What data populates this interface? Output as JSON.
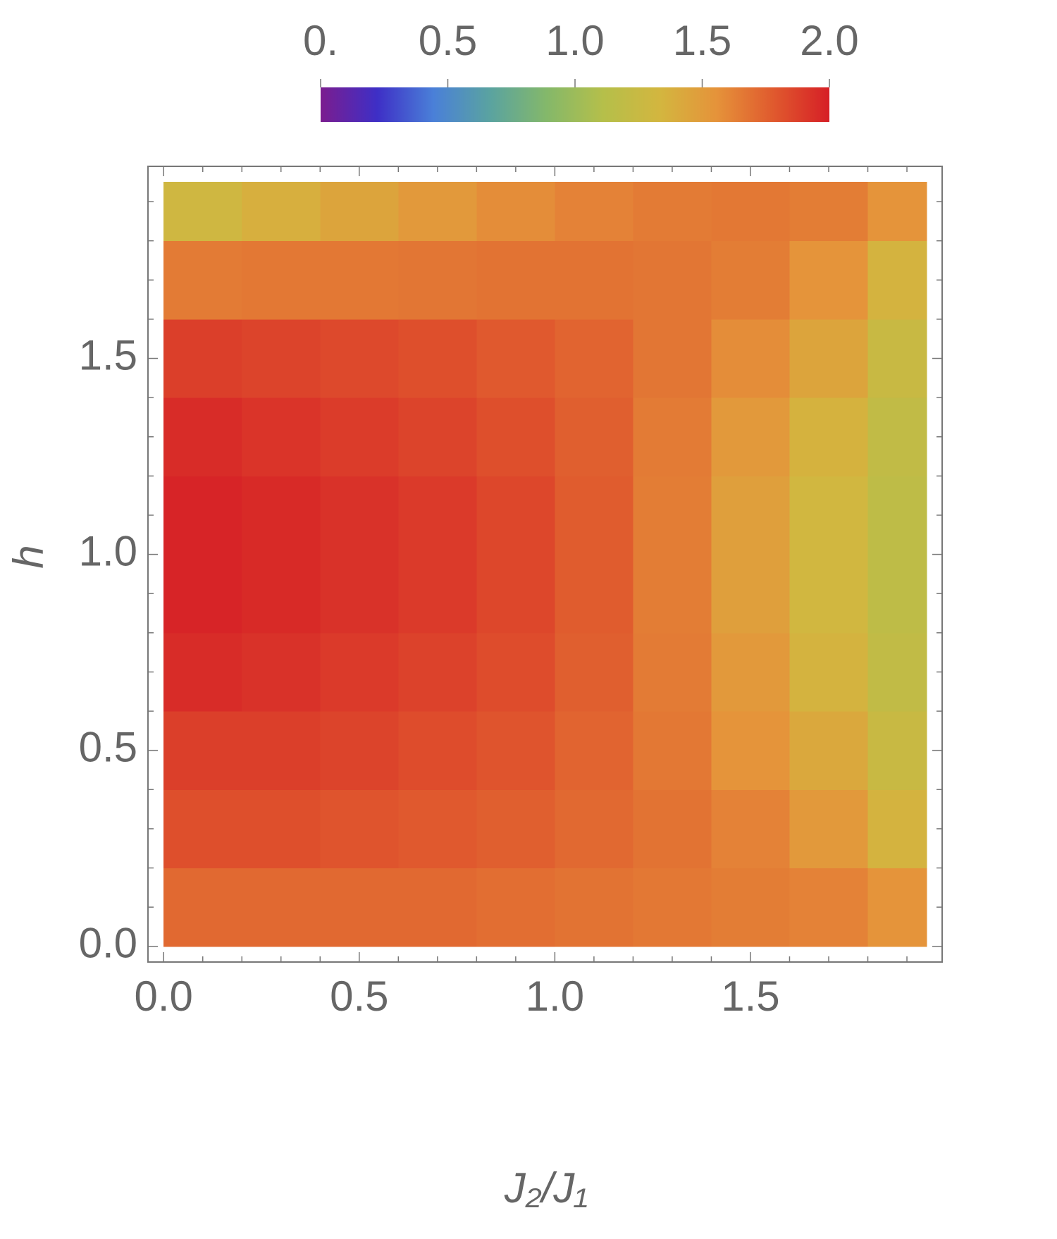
{
  "chart_data": {
    "type": "heatmap",
    "x_label": "J₂/J₁",
    "y_label": "h",
    "xlim": [
      -0.04,
      1.99
    ],
    "ylim": [
      -0.04,
      1.99
    ],
    "xticks": [
      {
        "value": 0,
        "label": "0.0"
      },
      0.5,
      {
        "value": 1,
        "label": "1.0"
      },
      1.5
    ],
    "yticks": [
      {
        "value": 0,
        "label": "0.0"
      },
      0.5,
      {
        "value": 1,
        "label": "1.0"
      },
      1.5
    ],
    "x_minor_ticks": [
      0.1,
      0.2,
      0.3,
      0.4,
      0.6,
      0.7,
      0.8,
      0.9,
      1.1,
      1.2,
      1.3,
      1.4,
      1.6,
      1.7,
      1.8,
      1.9
    ],
    "y_minor_ticks": [
      0.1,
      0.2,
      0.3,
      0.4,
      0.6,
      0.7,
      0.8,
      0.9,
      1.1,
      1.2,
      1.3,
      1.4,
      1.6,
      1.7,
      1.8,
      1.9
    ],
    "xbins": [
      0,
      0.2,
      0.4,
      0.6,
      0.8,
      1.0,
      1.2,
      1.4,
      1.6,
      1.8,
      1.95
    ],
    "ybins": [
      0,
      0.2,
      0.4,
      0.6,
      0.8,
      1.0,
      1.2,
      1.4,
      1.6,
      1.8,
      1.95
    ],
    "values": [
      [
        1.72,
        1.72,
        1.72,
        1.72,
        1.7,
        1.68,
        1.66,
        1.64,
        1.62,
        1.55
      ],
      [
        1.82,
        1.82,
        1.8,
        1.78,
        1.76,
        1.72,
        1.68,
        1.62,
        1.52,
        1.35
      ],
      [
        1.88,
        1.88,
        1.86,
        1.83,
        1.8,
        1.74,
        1.66,
        1.55,
        1.42,
        1.25
      ],
      [
        1.95,
        1.93,
        1.9,
        1.87,
        1.83,
        1.76,
        1.65,
        1.52,
        1.35,
        1.2
      ],
      [
        1.98,
        1.96,
        1.93,
        1.9,
        1.85,
        1.77,
        1.64,
        1.48,
        1.32,
        1.18
      ],
      [
        1.98,
        1.96,
        1.93,
        1.9,
        1.85,
        1.77,
        1.64,
        1.48,
        1.32,
        1.18
      ],
      [
        1.95,
        1.92,
        1.89,
        1.86,
        1.82,
        1.76,
        1.65,
        1.52,
        1.36,
        1.2
      ],
      [
        1.88,
        1.86,
        1.84,
        1.82,
        1.78,
        1.74,
        1.67,
        1.58,
        1.45,
        1.25
      ],
      [
        1.65,
        1.66,
        1.66,
        1.67,
        1.68,
        1.68,
        1.67,
        1.64,
        1.55,
        1.35
      ],
      [
        1.3,
        1.38,
        1.45,
        1.52,
        1.58,
        1.62,
        1.65,
        1.66,
        1.64,
        1.55
      ]
    ],
    "colorbar_lim": [
      0,
      2
    ],
    "colorbar_ticks": [
      {
        "value": 0,
        "label": "0."
      },
      0.5,
      {
        "value": 1,
        "label": "1.0"
      },
      1.5,
      {
        "value": 2,
        "label": "2.0"
      }
    ],
    "colorscale": [
      "#7b1d8f",
      "#3e2fc6",
      "#4a80d8",
      "#5aa3a0",
      "#84b86a",
      "#b5bf4a",
      "#d3b63f",
      "#e5933a",
      "#e05a2e",
      "#d61f26"
    ]
  }
}
